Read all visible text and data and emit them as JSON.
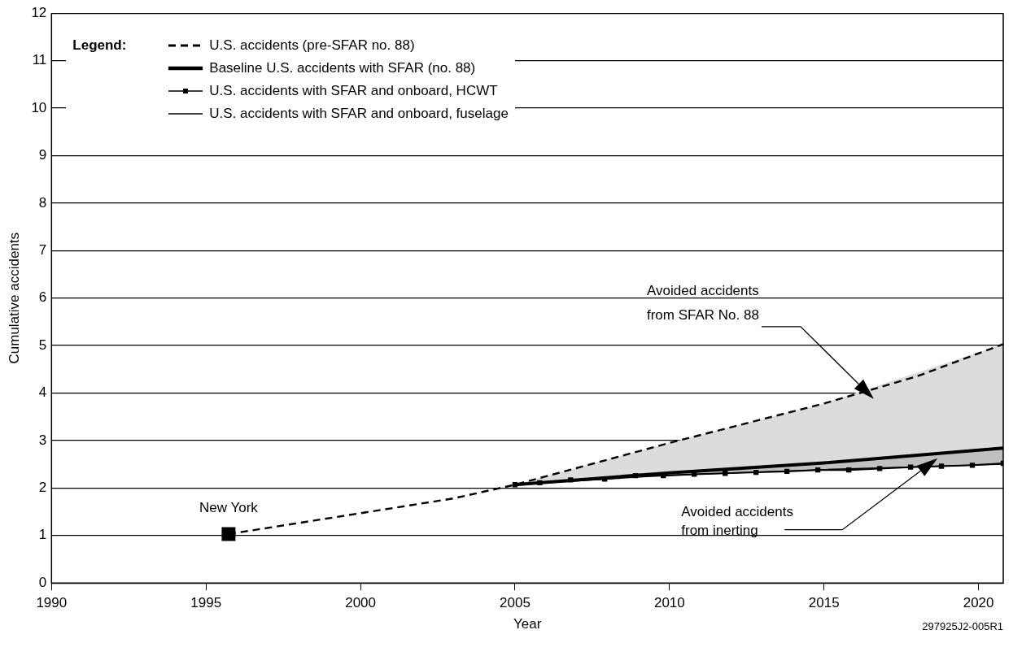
{
  "chart_data": {
    "type": "line",
    "xlabel": "Year",
    "ylabel": "Cumulative accidents",
    "legend_title": "Legend:",
    "legend": "top left",
    "grid": "y",
    "xlim": [
      1990,
      2020.8
    ],
    "xticks": [
      1990,
      1995,
      2000,
      2005,
      2010,
      2015,
      2020
    ],
    "ylim": [
      0,
      12
    ],
    "yticks": [
      0,
      1,
      2,
      3,
      4,
      5,
      6,
      7,
      8,
      9,
      10,
      11,
      12
    ],
    "series": [
      {
        "name": "U.S. accidents (pre-SFAR no. 88)",
        "color": "#000000",
        "line_style": "dashed",
        "marker": "none",
        "x": [
          1995.73,
          2000,
          2003,
          2005,
          2010,
          2015,
          2018,
          2020.8
        ],
        "values": [
          1.03,
          1.47,
          1.78,
          2.07,
          2.95,
          3.78,
          4.35,
          5.03
        ]
      },
      {
        "name": "Baseline U.S. accidents with SFAR (no. 88)",
        "color": "#000000",
        "line_style": "solid",
        "marker": "none",
        "x": [
          2005,
          2010,
          2015,
          2020.8
        ],
        "values": [
          2.07,
          2.32,
          2.53,
          2.84
        ],
        "lower": [
          2.07,
          2.32,
          2.53,
          2.84
        ],
        "upper": [
          2.07,
          2.95,
          3.78,
          5.03
        ]
      },
      {
        "name": "U.S. accidents with SFAR and onboard, HCWT",
        "color": "#000000",
        "line_style": "solid",
        "marker": "square",
        "x": [
          2005,
          2005.8,
          2006.8,
          2007.9,
          2008.9,
          2009.8,
          2010.8,
          2011.8,
          2012.8,
          2013.8,
          2014.8,
          2015.8,
          2016.8,
          2017.8,
          2018.8,
          2019.8,
          2020.8
        ],
        "values": [
          2.07,
          2.11,
          2.17,
          2.19,
          2.26,
          2.26,
          2.29,
          2.31,
          2.33,
          2.35,
          2.38,
          2.38,
          2.41,
          2.44,
          2.46,
          2.48,
          2.52
        ]
      },
      {
        "name": "U.S. accidents with SFAR and onboard, fuselage",
        "color": "#000000",
        "line_style": "solid",
        "marker": "none",
        "x": [
          2005,
          2010,
          2015,
          2020.8
        ],
        "values": [
          2.07,
          2.27,
          2.39,
          2.5
        ],
        "lower": [
          2.07,
          2.27,
          2.39,
          2.5
        ],
        "upper": [
          2.07,
          2.32,
          2.53,
          2.84
        ]
      },
      {
        "type": "scatter",
        "color": "#000000",
        "marker": "square",
        "x": [
          1995.73
        ],
        "values": [
          1.03
        ]
      }
    ],
    "annotations": [
      {
        "text": "New York",
        "x": 1995.73,
        "y": 1.03
      },
      "Avoided accidents\nfrom SFAR No. 88",
      "Avoided accidents\nfrom inerting",
      "297925J2-005R1"
    ]
  }
}
